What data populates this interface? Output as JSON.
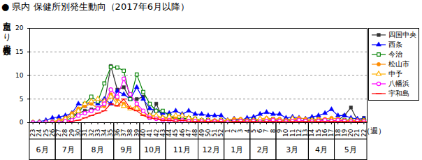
{
  "chart_data": {
    "type": "line",
    "title": "● 県内 保健所別発生動向（2017年6月以降）",
    "y_label": "定点当たり患者報告数",
    "x_label": "（週）",
    "categories": [
      "23",
      "24",
      "25",
      "26",
      "27",
      "28",
      "29",
      "30",
      "31",
      "32",
      "33",
      "34",
      "35",
      "36",
      "37",
      "38",
      "39",
      "40",
      "41",
      "42",
      "43",
      "44",
      "45",
      "46",
      "47",
      "48",
      "49",
      "50",
      "51",
      "52",
      "1",
      "2",
      "3",
      "4",
      "5",
      "6",
      "7",
      "8",
      "9",
      "10",
      "11",
      "12",
      "13",
      "14",
      "15",
      "16",
      "17",
      "18",
      "19",
      "20",
      "21",
      "22"
    ],
    "month_groups": [
      {
        "label": "6月",
        "from": "23",
        "to": "26"
      },
      {
        "label": "7月",
        "from": "27",
        "to": "30"
      },
      {
        "label": "8月",
        "from": "31",
        "to": "35"
      },
      {
        "label": "9月",
        "from": "36",
        "to": "39"
      },
      {
        "label": "10月",
        "from": "40",
        "to": "43"
      },
      {
        "label": "11月",
        "from": "44",
        "to": "48"
      },
      {
        "label": "12月",
        "from": "49",
        "to": "52"
      },
      {
        "label": "1月",
        "from": "1",
        "to": "4"
      },
      {
        "label": "2月",
        "from": "5",
        "to": "8"
      },
      {
        "label": "3月",
        "from": "9",
        "to": "13"
      },
      {
        "label": "4月",
        "from": "14",
        "to": "17"
      },
      {
        "label": "5月",
        "from": "18",
        "to": "22"
      }
    ],
    "ylim": [
      0,
      20
    ],
    "yticks": [
      0,
      5,
      10,
      15,
      20
    ],
    "grid": true,
    "legend": "right",
    "series": [
      {
        "name": "四国中央",
        "color": "#333333",
        "marker": "filled-square",
        "values": [
          0,
          0,
          0,
          0,
          0.3,
          0.8,
          1.5,
          2,
          2.5,
          2.8,
          3,
          4,
          12,
          7,
          7.5,
          5,
          5,
          5.5,
          1,
          4,
          1,
          1.2,
          0.8,
          0.5,
          0.8,
          0.5,
          0.3,
          0.5,
          0.3,
          0.5,
          0.3,
          0.5,
          0.5,
          0.5,
          0.8,
          0.5,
          0.5,
          0.8,
          0.3,
          0.5,
          0.8,
          0.5,
          0.3,
          0.5,
          0.8,
          0.5,
          0.3,
          0.5,
          1.5,
          3.2,
          0.5,
          1
        ]
      },
      {
        "name": "西条",
        "color": "#0000ff",
        "marker": "filled-triangle",
        "values": [
          0,
          0.2,
          0.5,
          1,
          1.2,
          1.5,
          2,
          4,
          3.5,
          4.5,
          4,
          5,
          4,
          6.7,
          6,
          5,
          7.5,
          5,
          3,
          2.5,
          2,
          2,
          2.5,
          1.8,
          2.5,
          1.8,
          1.8,
          1.5,
          1.5,
          1.5,
          0.5,
          0.8,
          0.5,
          1,
          1.2,
          1.8,
          2.2,
          1.8,
          1.8,
          1,
          1.2,
          1,
          0.8,
          1.2,
          1.5,
          2,
          2.8,
          1.5,
          1.5,
          1,
          0.8,
          0.8
        ]
      },
      {
        "name": "今治",
        "color": "#008000",
        "marker": "open-square",
        "values": [
          0,
          0,
          0,
          0,
          0,
          0.5,
          1,
          2,
          4,
          5.5,
          4.5,
          8.3,
          11.8,
          11.7,
          11,
          5,
          10.2,
          6.5,
          4,
          2.5,
          2.5,
          1.5,
          1,
          0.8,
          1,
          0.8,
          0.5,
          0.5,
          0.3,
          0.5,
          0.3,
          0.3,
          0.5,
          0.3,
          0.5,
          0.3,
          0.5,
          0.3,
          0.5,
          0.3,
          0.5,
          0.5,
          0.3,
          0.5,
          0.3,
          0.5,
          0.5,
          0.3,
          0.5,
          0.5,
          0.3,
          0.5
        ]
      },
      {
        "name": "松山市",
        "color": "#ff8c00",
        "marker": "filled-circle",
        "values": [
          0,
          0,
          0,
          0.2,
          0.5,
          1,
          2,
          3,
          3.5,
          4,
          3,
          3.5,
          6,
          5,
          4,
          3,
          3.5,
          2,
          1.5,
          1,
          1,
          0.8,
          0.8,
          0.5,
          0.5,
          0.5,
          0.5,
          0.5,
          0.5,
          0.5,
          0.5,
          0.8,
          0.8,
          0.5,
          0.5,
          0.8,
          1,
          0.8,
          0.8,
          0.5,
          0.8,
          1,
          0.8,
          0.5,
          0.8,
          0.8,
          1,
          0.8,
          0.5,
          0.5,
          0.5,
          0.5
        ]
      },
      {
        "name": "中予",
        "color": "#ffb000",
        "marker": "open-triangle",
        "values": [
          0,
          0,
          0,
          0,
          0.3,
          0.8,
          1.5,
          2.5,
          4,
          4.5,
          5,
          4.5,
          5.5,
          4,
          3.5,
          3,
          3,
          2,
          1.5,
          1.5,
          1,
          1.2,
          1.5,
          1.5,
          1,
          0.8,
          0.5,
          0.5,
          0.3,
          0.5,
          0.3,
          0.3,
          0.5,
          0.3,
          0.5,
          0.8,
          0.8,
          0.5,
          0.5,
          0.3,
          0.8,
          0.5,
          0.3,
          0.5,
          0.5,
          0.3,
          0.5,
          0.5,
          0.3,
          0.5,
          0.3,
          0.3
        ]
      },
      {
        "name": "八幡浜",
        "color": "#ff00ff",
        "marker": "open-circle",
        "values": [
          0,
          0,
          0,
          0,
          0,
          0.3,
          0.5,
          1.5,
          2,
          2.5,
          3,
          4,
          7,
          5.5,
          9.3,
          6,
          4,
          2.5,
          1,
          0.8,
          0.5,
          0.5,
          0.3,
          0.5,
          0.3,
          0.3,
          0.2,
          0.3,
          0.2,
          0.3,
          0,
          0.2,
          0.3,
          0.2,
          0.3,
          0.2,
          0.3,
          0.5,
          0.3,
          0.2,
          0.3,
          0.5,
          0.3,
          0.2,
          0.3,
          0.5,
          0.3,
          0.5,
          0.3,
          0.2,
          0.3,
          0.2
        ]
      },
      {
        "name": "宇和島",
        "color": "#ff0000",
        "marker": "dash",
        "values": [
          0,
          0,
          0,
          0,
          0,
          0,
          0.3,
          0.5,
          1,
          1.5,
          2,
          2.5,
          4,
          3.5,
          5,
          3,
          2.5,
          1.5,
          1,
          0.8,
          0.5,
          0.5,
          0.3,
          0.5,
          0.3,
          0.2,
          0.3,
          0.2,
          0.3,
          0.2,
          0,
          0.2,
          0.2,
          0.3,
          0.2,
          0.3,
          0.2,
          0.3,
          0.2,
          0.3,
          0.2,
          0.3,
          0.2,
          0.3,
          0.2,
          0.3,
          0.2,
          0.3,
          0.2,
          0.3,
          0.2,
          0.3
        ]
      }
    ]
  }
}
